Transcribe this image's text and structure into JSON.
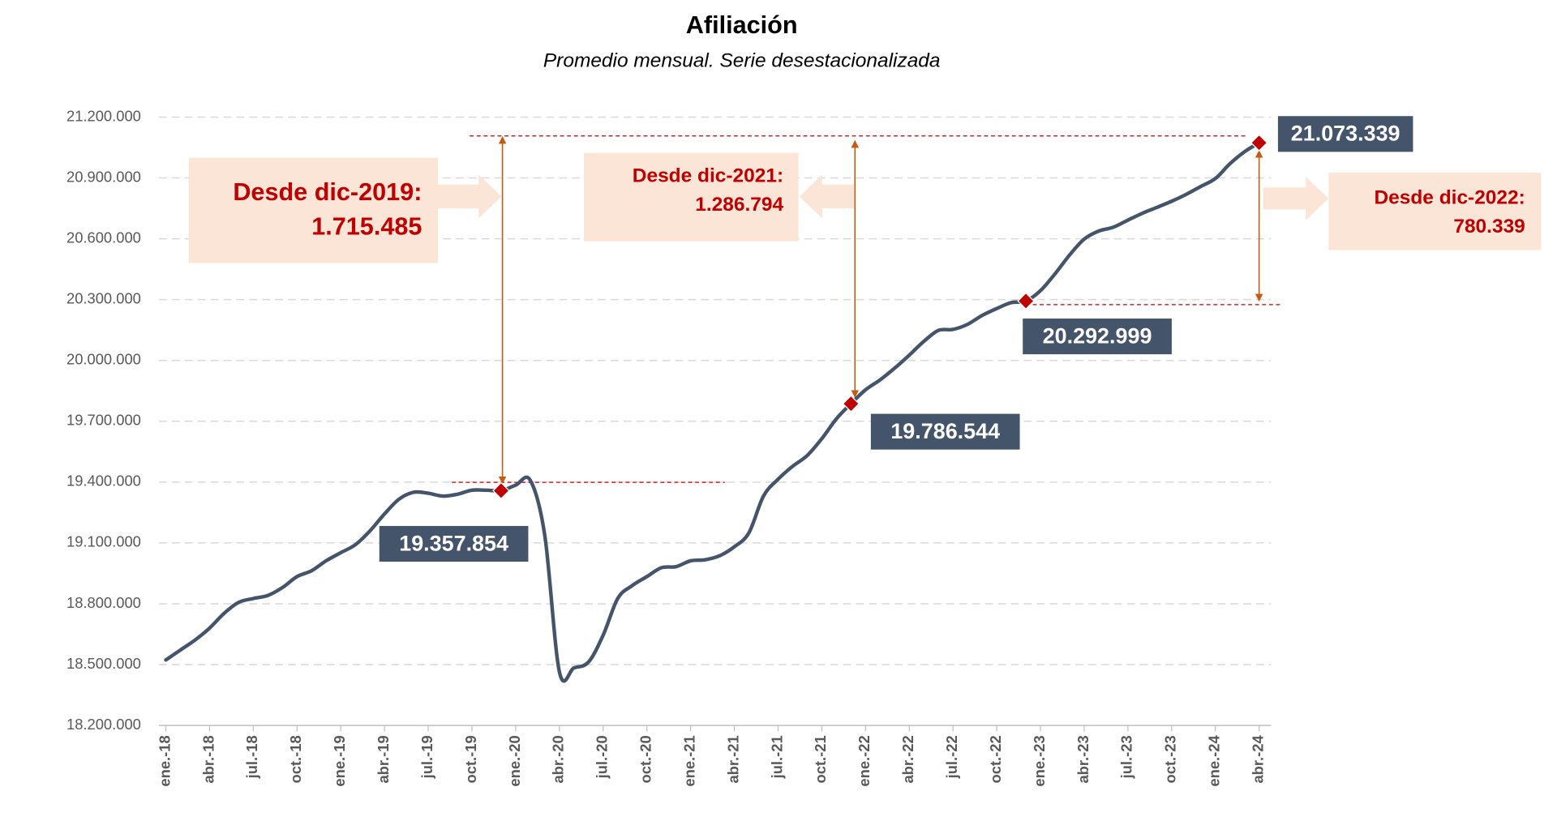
{
  "chart_data": {
    "type": "line",
    "title": "Afiliación",
    "subtitle": "Promedio mensual. Serie desestacionalizada",
    "categories": [
      "ene.-18",
      null,
      null,
      "abr.-18",
      null,
      null,
      "jul.-18",
      null,
      null,
      "oct.-18",
      null,
      null,
      "ene.-19",
      null,
      null,
      "abr.-19",
      null,
      null,
      "jul.-19",
      null,
      null,
      "oct.-19",
      null,
      null,
      "ene.-20",
      null,
      null,
      "abr.-20",
      null,
      null,
      "jul.-20",
      null,
      null,
      "oct.-20",
      null,
      null,
      "ene.-21",
      null,
      null,
      "abr.-21",
      null,
      null,
      "jul.-21",
      null,
      null,
      "oct.-21",
      null,
      null,
      "ene.-22",
      null,
      null,
      "abr.-22",
      null,
      null,
      "jul.-22",
      null,
      null,
      "oct.-22",
      null,
      null,
      "ene.-23",
      null,
      null,
      "abr.-23",
      null,
      null,
      "jul.-23",
      null,
      null,
      "oct.-23",
      null,
      null,
      "ene.-24",
      null,
      null,
      "abr.-24"
    ],
    "series": [
      {
        "name": "Afiliación",
        "color": "#44546a",
        "values": [
          18523000,
          18572000,
          18621000,
          18680000,
          18753000,
          18807000,
          18826000,
          18841000,
          18880000,
          18934000,
          18963000,
          19012000,
          19052000,
          19091000,
          19159000,
          19243000,
          19316000,
          19350000,
          19345000,
          19331000,
          19340000,
          19360000,
          19360000,
          19357854,
          19385000,
          19409000,
          19135000,
          18464000,
          18484000,
          18513000,
          18645000,
          18826000,
          18890000,
          18934000,
          18978000,
          18983000,
          19012000,
          19017000,
          19037000,
          19081000,
          19150000,
          19331000,
          19414000,
          19478000,
          19531000,
          19614000,
          19712000,
          19786544,
          19855000,
          19904000,
          19962000,
          20026000,
          20094000,
          20148000,
          20153000,
          20178000,
          20222000,
          20256000,
          20285000,
          20292999,
          20344000,
          20427000,
          20520000,
          20598000,
          20638000,
          20657000,
          20692000,
          20726000,
          20755000,
          20785000,
          20819000,
          20858000,
          20897000,
          20970000,
          21029000,
          21073339
        ],
        "value_labels": [
          null,
          null,
          null,
          null,
          null,
          null,
          null,
          null,
          null,
          null,
          null,
          null,
          null,
          null,
          null,
          null,
          null,
          null,
          null,
          null,
          null,
          null,
          null,
          "19.357.854",
          null,
          null,
          null,
          null,
          null,
          null,
          null,
          null,
          null,
          null,
          null,
          null,
          null,
          null,
          null,
          null,
          null,
          null,
          null,
          null,
          null,
          null,
          null,
          "19.786.544",
          null,
          null,
          null,
          null,
          null,
          null,
          null,
          null,
          null,
          null,
          null,
          "20.292.999",
          null,
          null,
          null,
          null,
          null,
          null,
          null,
          null,
          null,
          null,
          null,
          null,
          null,
          null,
          null,
          "21.073.339"
        ],
        "marker_color": "#c00000"
      }
    ],
    "ylim": [
      18200000,
      21200000
    ],
    "yticks": [
      {
        "value": 18200000,
        "label": "18.200.000"
      },
      {
        "value": 18500000,
        "label": "18.500.000"
      },
      {
        "value": 18800000,
        "label": "18.800.000"
      },
      {
        "value": 19100000,
        "label": "19.100.000"
      },
      {
        "value": 19400000,
        "label": "19.400.000"
      },
      {
        "value": 19700000,
        "label": "19.700.000"
      },
      {
        "value": 20000000,
        "label": "20.000.000"
      },
      {
        "value": 20300000,
        "label": "20.300.000"
      },
      {
        "value": 20600000,
        "label": "20.600.000"
      },
      {
        "value": 20900000,
        "label": "20.900.000"
      },
      {
        "value": 21200000,
        "label": "21.200.000"
      }
    ],
    "grid": true,
    "annotations": [
      {
        "title": "Desde dic-2019:",
        "value": "1.715.485"
      },
      {
        "title": "Desde dic-2021:",
        "value": "1.286.794"
      },
      {
        "title": "Desde dic-2022:",
        "value": "780.339"
      }
    ]
  }
}
